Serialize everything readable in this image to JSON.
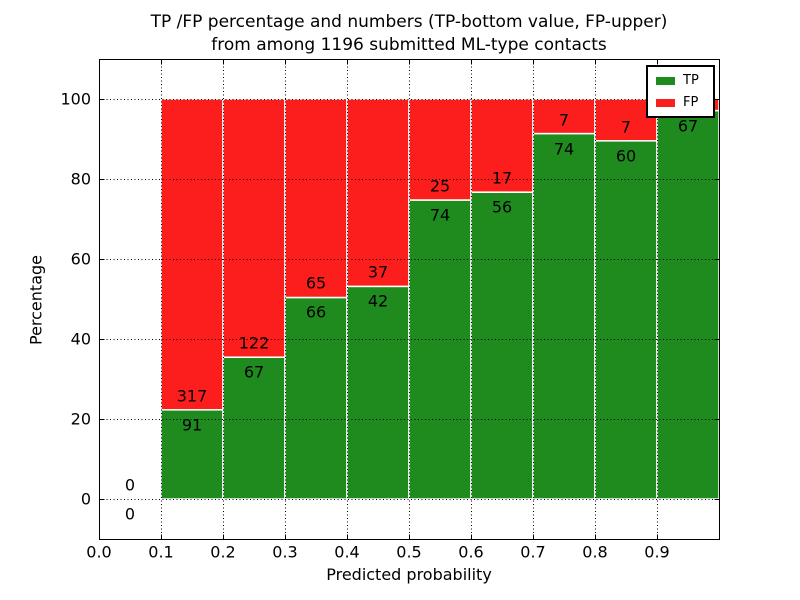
{
  "header": {
    "title_line1": "TP /FP percentage and numbers (TP-bottom value, FP-upper)",
    "title_line2": "from among 1196 submitted ML-type contacts"
  },
  "legend": {
    "position": "upper right",
    "items": [
      {
        "label": "TP",
        "color": "#1f8b1f"
      },
      {
        "label": "FP",
        "color": "#fc1d1d"
      }
    ]
  },
  "chart_data": {
    "type": "bar",
    "stacked": true,
    "title": "TP /FP percentage and numbers (TP-bottom value, FP-upper) from among 1196 submitted ML-type contacts",
    "xlabel": "Predicted probability",
    "ylabel": "Percentage",
    "xlim": [
      0.0,
      1.0
    ],
    "ylim": [
      -10,
      110
    ],
    "grid": "dotted",
    "x_tick_labels": [
      "0.0",
      "0.1",
      "0.2",
      "0.3",
      "0.4",
      "0.5",
      "0.6",
      "0.7",
      "0.8",
      "0.9"
    ],
    "y_tick_values": [
      0,
      20,
      40,
      60,
      80,
      100
    ],
    "y_tick_labels": [
      "0",
      "20",
      "40",
      "60",
      "80",
      "100"
    ],
    "series": [
      {
        "name": "TP",
        "color": "#1f8b1f"
      },
      {
        "name": "FP",
        "color": "#fc1d1d"
      }
    ],
    "bins": [
      {
        "x_start": 0.0,
        "x_end": 0.1,
        "tp_count": "0",
        "fp_count": "0",
        "tp_pct": 0,
        "fp_pct": 0
      },
      {
        "x_start": 0.1,
        "x_end": 0.2,
        "tp_count": "91",
        "fp_count": "317",
        "tp_pct": 22.3,
        "fp_pct": 77.7
      },
      {
        "x_start": 0.2,
        "x_end": 0.3,
        "tp_count": "67",
        "fp_count": "122",
        "tp_pct": 35.45,
        "fp_pct": 64.55
      },
      {
        "x_start": 0.3,
        "x_end": 0.4,
        "tp_count": "66",
        "fp_count": "65",
        "tp_pct": 50.38,
        "fp_pct": 49.62
      },
      {
        "x_start": 0.4,
        "x_end": 0.5,
        "tp_count": "42",
        "fp_count": "37",
        "tp_pct": 53.16,
        "fp_pct": 46.84
      },
      {
        "x_start": 0.5,
        "x_end": 0.6,
        "tp_count": "74",
        "fp_count": "25",
        "tp_pct": 74.75,
        "fp_pct": 25.25
      },
      {
        "x_start": 0.6,
        "x_end": 0.7,
        "tp_count": "56",
        "fp_count": "17",
        "tp_pct": 76.71,
        "fp_pct": 23.29
      },
      {
        "x_start": 0.7,
        "x_end": 0.8,
        "tp_count": "74",
        "fp_count": "7",
        "tp_pct": 91.36,
        "fp_pct": 8.64
      },
      {
        "x_start": 0.8,
        "x_end": 0.9,
        "tp_count": "60",
        "fp_count": "7",
        "tp_pct": 89.55,
        "fp_pct": 10.45
      },
      {
        "x_start": 0.9,
        "x_end": 1.0,
        "tp_count": "67",
        "fp_count": "",
        "tp_pct": 97.1,
        "fp_pct": 2.9
      }
    ]
  }
}
